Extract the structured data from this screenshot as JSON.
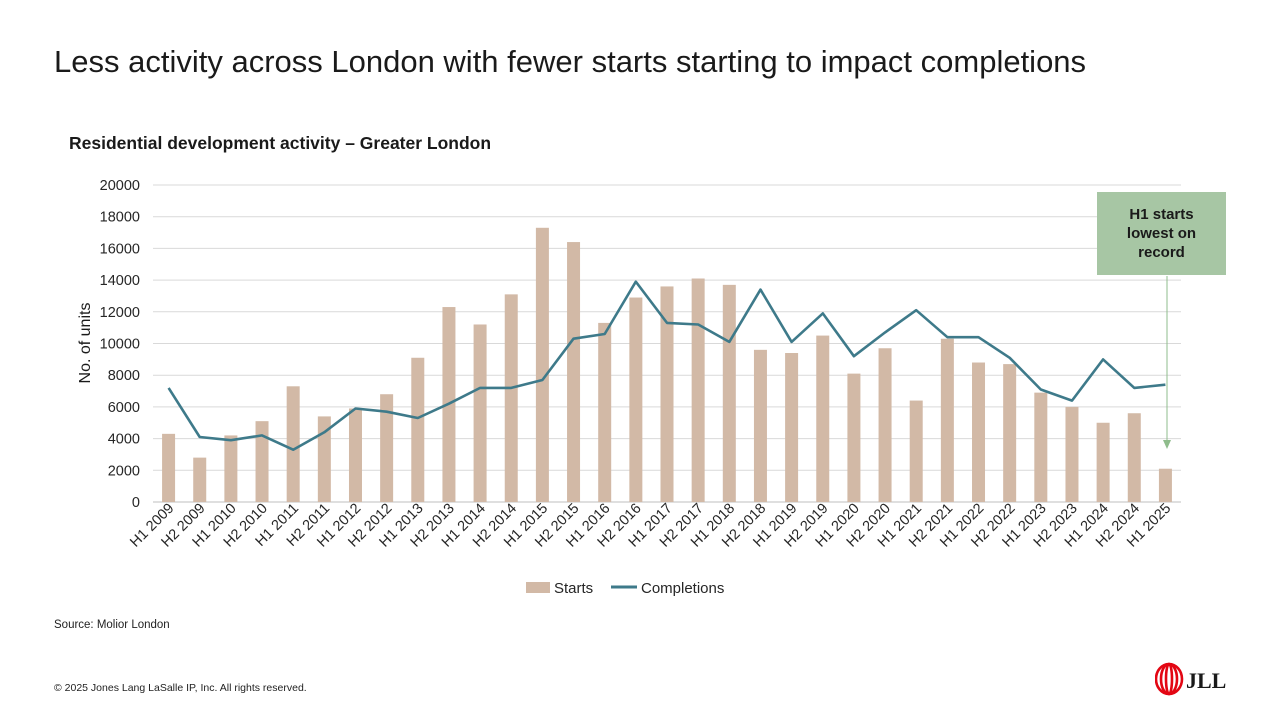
{
  "slide": {
    "title": "Less activity across London with fewer starts starting to impact completions",
    "source": "Source: Molior London",
    "copyright": "© 2025 Jones Lang LaSalle IP, Inc. All rights reserved.",
    "logo_text": "JLL",
    "callout": "H1 starts lowest on record"
  },
  "colors": {
    "starts": "#d2b9a6",
    "completions": "#3e7a8a",
    "grid": "#d9d9d9",
    "callout": "#a7c6a4",
    "arrow": "#8fbc8c",
    "logo_red": "#e30613"
  },
  "chart_data": {
    "type": "bar",
    "title": "Residential development activity – Greater London",
    "xlabel": "",
    "ylabel": "No. of units",
    "ylim": [
      0,
      20000
    ],
    "yticks": [
      0,
      2000,
      4000,
      6000,
      8000,
      10000,
      12000,
      14000,
      16000,
      18000,
      20000
    ],
    "grid": true,
    "legend_position": "bottom",
    "categories": [
      "H1 2009",
      "H2 2009",
      "H1 2010",
      "H2 2010",
      "H1 2011",
      "H2 2011",
      "H1 2012",
      "H2 2012",
      "H1 2013",
      "H2 2013",
      "H1 2014",
      "H2 2014",
      "H1 2015",
      "H2 2015",
      "H1 2016",
      "H2 2016",
      "H1 2017",
      "H2 2017",
      "H1 2018",
      "H2 2018",
      "H1 2019",
      "H2 2019",
      "H1 2020",
      "H2 2020",
      "H1 2021",
      "H2 2021",
      "H1 2022",
      "H2 2022",
      "H1 2023",
      "H2 2023",
      "H1 2024",
      "H2 2024",
      "H1 2025"
    ],
    "series": [
      {
        "name": "Starts",
        "type": "bar",
        "values": [
          4300,
          2800,
          4200,
          5100,
          7300,
          5400,
          5900,
          6800,
          9100,
          12300,
          11200,
          13100,
          17300,
          16400,
          11300,
          12900,
          13600,
          14100,
          13700,
          9600,
          9400,
          10500,
          8100,
          9700,
          6400,
          10300,
          8800,
          8700,
          6900,
          6000,
          5000,
          5600,
          2100
        ]
      },
      {
        "name": "Completions",
        "type": "line",
        "values": [
          7200,
          4100,
          3900,
          4200,
          3300,
          4400,
          5900,
          5700,
          5300,
          6200,
          7200,
          7200,
          7700,
          10300,
          10600,
          13900,
          11300,
          11200,
          10100,
          13400,
          10100,
          11900,
          9200,
          10700,
          12100,
          10400,
          10400,
          9100,
          7100,
          6400,
          9000,
          7200,
          7400
        ]
      }
    ]
  }
}
